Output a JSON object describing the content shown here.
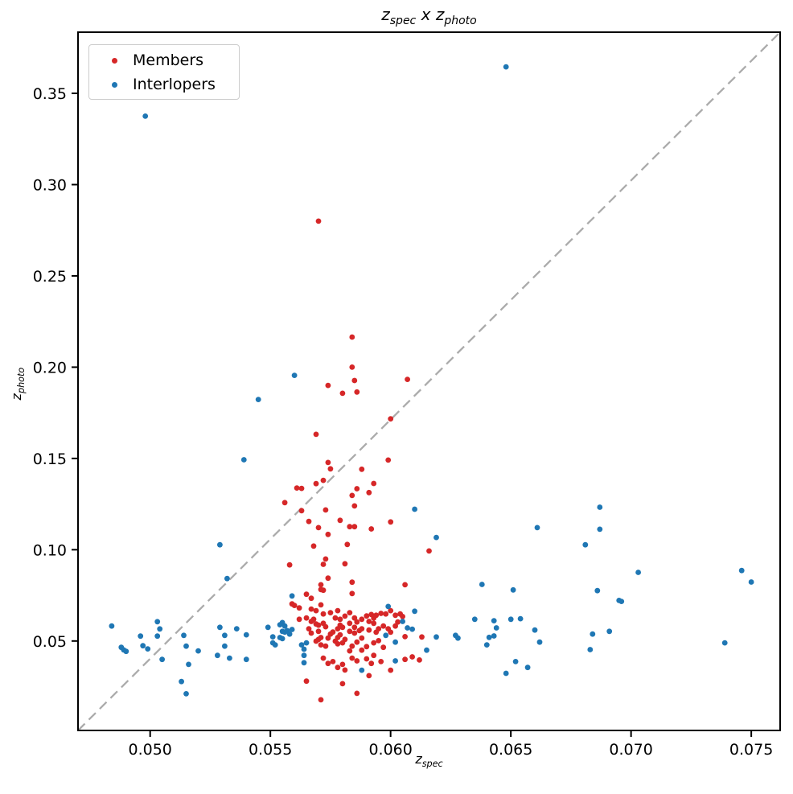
{
  "chart_data": {
    "type": "scatter",
    "title": "z_spec x z_photo",
    "xlabel": "z_spec",
    "ylabel": "z_photo",
    "xlim": [
      0.047,
      0.0762
    ],
    "ylim": [
      0.001,
      0.3835
    ],
    "grid": false,
    "xticks": [
      0.05,
      0.055,
      0.06,
      0.065,
      0.07,
      0.075
    ],
    "xtick_labels": [
      "0.050",
      "0.055",
      "0.060",
      "0.065",
      "0.070",
      "0.075"
    ],
    "yticks": [
      0.05,
      0.1,
      0.15,
      0.2,
      0.25,
      0.3,
      0.35
    ],
    "ytick_labels": [
      "0.05",
      "0.10",
      "0.15",
      "0.20",
      "0.25",
      "0.30",
      "0.35"
    ],
    "reference_line": {
      "type": "diagonal-dashed",
      "color": "#ababab",
      "from": [
        0.047,
        0.001
      ],
      "to": [
        0.0762,
        0.3835
      ]
    },
    "legend": {
      "position": "upper left",
      "entries": [
        "Members",
        "Interlopers"
      ]
    },
    "title_parts": {
      "base1": "z",
      "sub1": "spec",
      "mid": " x ",
      "base2": "z",
      "sub2": "photo"
    },
    "xlabel_parts": {
      "base": "z",
      "sub": "spec"
    },
    "ylabel_parts": {
      "base": "z",
      "sub": "photo"
    },
    "series": [
      {
        "name": "Members",
        "color": "#d62728",
        "points": [
          [
            0.057,
            0.28
          ],
          [
            0.0584,
            0.2165
          ],
          [
            0.0584,
            0.2
          ],
          [
            0.0585,
            0.1927
          ],
          [
            0.0574,
            0.19
          ],
          [
            0.058,
            0.1857
          ],
          [
            0.0586,
            0.1864
          ],
          [
            0.0607,
            0.1933
          ],
          [
            0.06,
            0.1717
          ],
          [
            0.0569,
            0.1632
          ],
          [
            0.0574,
            0.1478
          ],
          [
            0.0575,
            0.1443
          ],
          [
            0.0588,
            0.1441
          ],
          [
            0.0599,
            0.1491
          ],
          [
            0.0572,
            0.138
          ],
          [
            0.0569,
            0.1362
          ],
          [
            0.0561,
            0.1338
          ],
          [
            0.0563,
            0.1336
          ],
          [
            0.0593,
            0.1363
          ],
          [
            0.0586,
            0.1334
          ],
          [
            0.0591,
            0.1313
          ],
          [
            0.0584,
            0.1297
          ],
          [
            0.0556,
            0.1258
          ],
          [
            0.0563,
            0.1214
          ],
          [
            0.0585,
            0.124
          ],
          [
            0.0573,
            0.1218
          ],
          [
            0.0566,
            0.1155
          ],
          [
            0.057,
            0.1121
          ],
          [
            0.0579,
            0.1161
          ],
          [
            0.0583,
            0.1126
          ],
          [
            0.0585,
            0.1126
          ],
          [
            0.0592,
            0.1114
          ],
          [
            0.0574,
            0.1084
          ],
          [
            0.06,
            0.1152
          ],
          [
            0.0568,
            0.102
          ],
          [
            0.0582,
            0.1029
          ],
          [
            0.0616,
            0.0993
          ],
          [
            0.0558,
            0.0917
          ],
          [
            0.0573,
            0.0949
          ],
          [
            0.0572,
            0.092
          ],
          [
            0.0581,
            0.0923
          ],
          [
            0.0574,
            0.0844
          ],
          [
            0.0571,
            0.0808
          ],
          [
            0.0571,
            0.0782
          ],
          [
            0.0572,
            0.0778
          ],
          [
            0.0584,
            0.0822
          ],
          [
            0.0584,
            0.076
          ],
          [
            0.0565,
            0.0756
          ],
          [
            0.0567,
            0.0734
          ],
          [
            0.0559,
            0.0703
          ],
          [
            0.0571,
            0.0698
          ],
          [
            0.0606,
            0.0808
          ],
          [
            0.056,
            0.0695
          ],
          [
            0.0562,
            0.0681
          ],
          [
            0.0567,
            0.0675
          ],
          [
            0.0569,
            0.0666
          ],
          [
            0.0572,
            0.0648
          ],
          [
            0.0575,
            0.0655
          ],
          [
            0.0578,
            0.0666
          ],
          [
            0.0577,
            0.0626
          ],
          [
            0.0579,
            0.0619
          ],
          [
            0.0581,
            0.0636
          ],
          [
            0.0562,
            0.0619
          ],
          [
            0.0565,
            0.0626
          ],
          [
            0.0567,
            0.0607
          ],
          [
            0.0568,
            0.0619
          ],
          [
            0.0569,
            0.0593
          ],
          [
            0.0566,
            0.0567
          ],
          [
            0.0567,
            0.0543
          ],
          [
            0.057,
            0.0553
          ],
          [
            0.057,
            0.0587
          ],
          [
            0.0572,
            0.0597
          ],
          [
            0.0573,
            0.0578
          ],
          [
            0.0574,
            0.0516
          ],
          [
            0.0571,
            0.0519
          ],
          [
            0.057,
            0.0509
          ],
          [
            0.0569,
            0.0499
          ],
          [
            0.0571,
            0.0479
          ],
          [
            0.0573,
            0.0472
          ],
          [
            0.0575,
            0.0538
          ],
          [
            0.0576,
            0.0549
          ],
          [
            0.0578,
            0.0567
          ],
          [
            0.0579,
            0.0587
          ],
          [
            0.058,
            0.0575
          ],
          [
            0.0579,
            0.0534
          ],
          [
            0.0578,
            0.0519
          ],
          [
            0.0577,
            0.0499
          ],
          [
            0.0578,
            0.0484
          ],
          [
            0.058,
            0.049
          ],
          [
            0.0581,
            0.0509
          ],
          [
            0.0572,
            0.0406
          ],
          [
            0.0574,
            0.0377
          ],
          [
            0.0576,
            0.0387
          ],
          [
            0.0578,
            0.0355
          ],
          [
            0.058,
            0.0372
          ],
          [
            0.0581,
            0.0341
          ],
          [
            0.0583,
            0.0655
          ],
          [
            0.0585,
            0.0626
          ],
          [
            0.0583,
            0.0597
          ],
          [
            0.0586,
            0.0604
          ],
          [
            0.0588,
            0.0619
          ],
          [
            0.0585,
            0.0575
          ],
          [
            0.0583,
            0.0553
          ],
          [
            0.0585,
            0.0543
          ],
          [
            0.0587,
            0.0557
          ],
          [
            0.0588,
            0.0567
          ],
          [
            0.059,
            0.0637
          ],
          [
            0.0592,
            0.0645
          ],
          [
            0.0593,
            0.0626
          ],
          [
            0.0594,
            0.0641
          ],
          [
            0.0596,
            0.0651
          ],
          [
            0.0591,
            0.0607
          ],
          [
            0.0593,
            0.0597
          ],
          [
            0.0591,
            0.056
          ],
          [
            0.0594,
            0.0548
          ],
          [
            0.0595,
            0.0567
          ],
          [
            0.0597,
            0.0582
          ],
          [
            0.0599,
            0.0567
          ],
          [
            0.0598,
            0.0648
          ],
          [
            0.06,
            0.0666
          ],
          [
            0.0602,
            0.0641
          ],
          [
            0.0604,
            0.0648
          ],
          [
            0.0605,
            0.0634
          ],
          [
            0.0603,
            0.0604
          ],
          [
            0.0602,
            0.0582
          ],
          [
            0.06,
            0.0548
          ],
          [
            0.0588,
            0.0516
          ],
          [
            0.0586,
            0.0494
          ],
          [
            0.0584,
            0.0472
          ],
          [
            0.0583,
            0.0446
          ],
          [
            0.0588,
            0.045
          ],
          [
            0.059,
            0.0469
          ],
          [
            0.0593,
            0.049
          ],
          [
            0.0595,
            0.0502
          ],
          [
            0.0597,
            0.0465
          ],
          [
            0.0584,
            0.0406
          ],
          [
            0.0586,
            0.0391
          ],
          [
            0.059,
            0.0402
          ],
          [
            0.0593,
            0.0421
          ],
          [
            0.0592,
            0.0377
          ],
          [
            0.0596,
            0.0387
          ],
          [
            0.0606,
            0.0399
          ],
          [
            0.0609,
            0.0413
          ],
          [
            0.0612,
            0.0396
          ],
          [
            0.06,
            0.034
          ],
          [
            0.0606,
            0.0524
          ],
          [
            0.0613,
            0.0522
          ],
          [
            0.0571,
            0.0178
          ],
          [
            0.0565,
            0.028
          ],
          [
            0.058,
            0.0266
          ],
          [
            0.0586,
            0.0213
          ],
          [
            0.0591,
            0.031
          ]
        ]
      },
      {
        "name": "Interlopers",
        "color": "#1f77b4",
        "points": [
          [
            0.0498,
            0.3375
          ],
          [
            0.0648,
            0.3645
          ],
          [
            0.056,
            0.1955
          ],
          [
            0.0545,
            0.1823
          ],
          [
            0.0539,
            0.1493
          ],
          [
            0.0529,
            0.1027
          ],
          [
            0.0532,
            0.0842
          ],
          [
            0.061,
            0.1222
          ],
          [
            0.0619,
            0.1067
          ],
          [
            0.0687,
            0.1233
          ],
          [
            0.0661,
            0.1121
          ],
          [
            0.0687,
            0.1112
          ],
          [
            0.0681,
            0.1027
          ],
          [
            0.0703,
            0.0876
          ],
          [
            0.0746,
            0.0886
          ],
          [
            0.075,
            0.0823
          ],
          [
            0.0695,
            0.0722
          ],
          [
            0.0638,
            0.081
          ],
          [
            0.0651,
            0.078
          ],
          [
            0.0686,
            0.0776
          ],
          [
            0.0696,
            0.0717
          ],
          [
            0.0635,
            0.0619
          ],
          [
            0.0643,
            0.0611
          ],
          [
            0.065,
            0.0619
          ],
          [
            0.0654,
            0.0622
          ],
          [
            0.0644,
            0.0572
          ],
          [
            0.0643,
            0.0528
          ],
          [
            0.0641,
            0.052
          ],
          [
            0.0628,
            0.0516
          ],
          [
            0.064,
            0.0479
          ],
          [
            0.066,
            0.056
          ],
          [
            0.0662,
            0.0494
          ],
          [
            0.0652,
            0.0387
          ],
          [
            0.0657,
            0.0355
          ],
          [
            0.0648,
            0.0323
          ],
          [
            0.0684,
            0.0538
          ],
          [
            0.0691,
            0.0553
          ],
          [
            0.0683,
            0.0453
          ],
          [
            0.0739,
            0.049
          ],
          [
            0.0484,
            0.0582
          ],
          [
            0.0496,
            0.0527
          ],
          [
            0.0488,
            0.0465
          ],
          [
            0.0489,
            0.0451
          ],
          [
            0.049,
            0.0443
          ],
          [
            0.0497,
            0.0474
          ],
          [
            0.0499,
            0.0457
          ],
          [
            0.0503,
            0.0606
          ],
          [
            0.0504,
            0.0566
          ],
          [
            0.0503,
            0.0527
          ],
          [
            0.0514,
            0.0531
          ],
          [
            0.0515,
            0.0472
          ],
          [
            0.052,
            0.0446
          ],
          [
            0.0505,
            0.0399
          ],
          [
            0.0513,
            0.0278
          ],
          [
            0.0515,
            0.0211
          ],
          [
            0.0529,
            0.0575
          ],
          [
            0.0531,
            0.0531
          ],
          [
            0.0531,
            0.0472
          ],
          [
            0.0528,
            0.0421
          ],
          [
            0.0536,
            0.0567
          ],
          [
            0.054,
            0.0534
          ],
          [
            0.0533,
            0.0406
          ],
          [
            0.054,
            0.0399
          ],
          [
            0.0516,
            0.0372
          ],
          [
            0.0549,
            0.0575
          ],
          [
            0.0551,
            0.0523
          ],
          [
            0.0551,
            0.049
          ],
          [
            0.0552,
            0.0479
          ],
          [
            0.0554,
            0.0589
          ],
          [
            0.0555,
            0.0601
          ],
          [
            0.0556,
            0.0582
          ],
          [
            0.0555,
            0.0553
          ],
          [
            0.0556,
            0.0549
          ],
          [
            0.0557,
            0.0557
          ],
          [
            0.0559,
            0.0563
          ],
          [
            0.0558,
            0.0538
          ],
          [
            0.0554,
            0.0519
          ],
          [
            0.0555,
            0.0513
          ],
          [
            0.0563,
            0.0479
          ],
          [
            0.0565,
            0.049
          ],
          [
            0.0564,
            0.0455
          ],
          [
            0.0564,
            0.0421
          ],
          [
            0.0564,
            0.0381
          ],
          [
            0.0559,
            0.0747
          ],
          [
            0.0599,
            0.0689
          ],
          [
            0.0605,
            0.0607
          ],
          [
            0.0607,
            0.0572
          ],
          [
            0.0609,
            0.0565
          ],
          [
            0.0598,
            0.0531
          ],
          [
            0.0602,
            0.0494
          ],
          [
            0.0615,
            0.045
          ],
          [
            0.0602,
            0.0391
          ],
          [
            0.0588,
            0.034
          ],
          [
            0.061,
            0.0663
          ],
          [
            0.0619,
            0.0522
          ],
          [
            0.0627,
            0.0531
          ]
        ]
      }
    ]
  }
}
